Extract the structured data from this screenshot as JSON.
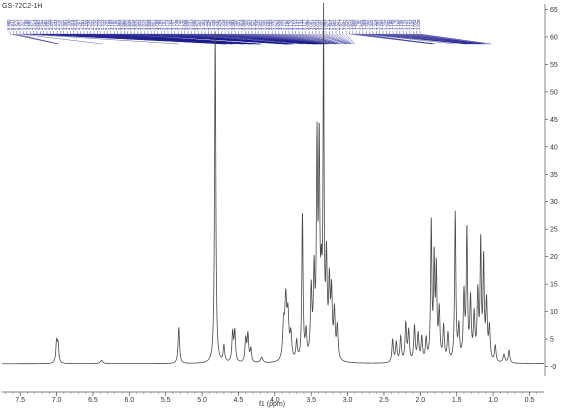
{
  "chart_data": {
    "type": "line",
    "sample_label": "GS-72C2-1H",
    "xlabel": "f1 (ppm)",
    "ylabel": "",
    "x_reversed": true,
    "xlim": [
      7.75,
      0.3
    ],
    "ylim": [
      -1,
      66
    ],
    "x_ticks": [
      "7.5",
      "7.0",
      "6.5",
      "6.0",
      "5.5",
      "5.0",
      "4.5",
      "4.0",
      "3.5",
      "3.0",
      "2.5",
      "2.0",
      "1.5",
      "1.0",
      "0.5"
    ],
    "y_ticks": [
      "-0",
      "5",
      "10",
      "15",
      "20",
      "25",
      "30",
      "35",
      "40",
      "45",
      "50",
      "55",
      "60",
      "65"
    ],
    "line_color": "#4a4a4a",
    "peak_label_color": "#1a1a8c",
    "baseline": 0.5,
    "peaks": [
      {
        "x": 7.0,
        "h": 3.8,
        "w": 0.012
      },
      {
        "x": 6.98,
        "h": 3.2,
        "w": 0.012
      },
      {
        "x": 6.38,
        "h": 0.6,
        "w": 0.02
      },
      {
        "x": 5.32,
        "h": 6.6,
        "w": 0.012
      },
      {
        "x": 4.82,
        "h": 60.5,
        "w": 0.01
      },
      {
        "x": 4.7,
        "h": 3.0,
        "w": 0.012
      },
      {
        "x": 4.58,
        "h": 5.3,
        "w": 0.012
      },
      {
        "x": 4.55,
        "h": 5.6,
        "w": 0.012
      },
      {
        "x": 4.4,
        "h": 4.2,
        "w": 0.012
      },
      {
        "x": 4.37,
        "h": 5.0,
        "w": 0.012
      },
      {
        "x": 4.33,
        "h": 2.4,
        "w": 0.012
      },
      {
        "x": 4.18,
        "h": 1.0,
        "w": 0.02
      },
      {
        "x": 3.88,
        "h": 6.2,
        "w": 0.015
      },
      {
        "x": 3.85,
        "h": 10.5,
        "w": 0.015
      },
      {
        "x": 3.82,
        "h": 7.8,
        "w": 0.015
      },
      {
        "x": 3.78,
        "h": 4.6,
        "w": 0.015
      },
      {
        "x": 3.7,
        "h": 3.5,
        "w": 0.012
      },
      {
        "x": 3.62,
        "h": 27.0,
        "w": 0.01
      },
      {
        "x": 3.57,
        "h": 4.8,
        "w": 0.012
      },
      {
        "x": 3.5,
        "h": 12.5,
        "w": 0.012
      },
      {
        "x": 3.46,
        "h": 15.0,
        "w": 0.012
      },
      {
        "x": 3.42,
        "h": 37.5,
        "w": 0.01
      },
      {
        "x": 3.39,
        "h": 37.0,
        "w": 0.01
      },
      {
        "x": 3.36,
        "h": 12.0,
        "w": 0.012
      },
      {
        "x": 3.33,
        "h": 60.5,
        "w": 0.008
      },
      {
        "x": 3.29,
        "h": 17.5,
        "w": 0.012
      },
      {
        "x": 3.25,
        "h": 13.0,
        "w": 0.012
      },
      {
        "x": 3.22,
        "h": 11.5,
        "w": 0.012
      },
      {
        "x": 3.18,
        "h": 8.5,
        "w": 0.012
      },
      {
        "x": 3.14,
        "h": 6.0,
        "w": 0.012
      },
      {
        "x": 2.38,
        "h": 4.2,
        "w": 0.012
      },
      {
        "x": 2.33,
        "h": 3.6,
        "w": 0.012
      },
      {
        "x": 2.27,
        "h": 4.6,
        "w": 0.012
      },
      {
        "x": 2.2,
        "h": 7.0,
        "w": 0.012
      },
      {
        "x": 2.16,
        "h": 5.6,
        "w": 0.012
      },
      {
        "x": 2.08,
        "h": 6.4,
        "w": 0.012
      },
      {
        "x": 2.03,
        "h": 5.0,
        "w": 0.012
      },
      {
        "x": 1.98,
        "h": 4.4,
        "w": 0.012
      },
      {
        "x": 1.92,
        "h": 4.0,
        "w": 0.012
      },
      {
        "x": 1.85,
        "h": 25.0,
        "w": 0.01
      },
      {
        "x": 1.81,
        "h": 18.0,
        "w": 0.01
      },
      {
        "x": 1.78,
        "h": 16.0,
        "w": 0.01
      },
      {
        "x": 1.74,
        "h": 9.0,
        "w": 0.012
      },
      {
        "x": 1.68,
        "h": 6.2,
        "w": 0.012
      },
      {
        "x": 1.62,
        "h": 5.0,
        "w": 0.012
      },
      {
        "x": 1.52,
        "h": 27.0,
        "w": 0.01
      },
      {
        "x": 1.47,
        "h": 6.0,
        "w": 0.012
      },
      {
        "x": 1.4,
        "h": 12.0,
        "w": 0.012
      },
      {
        "x": 1.36,
        "h": 23.5,
        "w": 0.01
      },
      {
        "x": 1.31,
        "h": 11.0,
        "w": 0.012
      },
      {
        "x": 1.26,
        "h": 8.0,
        "w": 0.012
      },
      {
        "x": 1.21,
        "h": 12.0,
        "w": 0.012
      },
      {
        "x": 1.17,
        "h": 21.0,
        "w": 0.01
      },
      {
        "x": 1.13,
        "h": 18.0,
        "w": 0.01
      },
      {
        "x": 1.09,
        "h": 10.5,
        "w": 0.012
      },
      {
        "x": 1.05,
        "h": 6.0,
        "w": 0.012
      },
      {
        "x": 0.97,
        "h": 3.0,
        "w": 0.012
      },
      {
        "x": 0.85,
        "h": 1.5,
        "w": 0.015
      },
      {
        "x": 0.78,
        "h": 2.3,
        "w": 0.012
      }
    ],
    "peak_labels": [
      {
        "text": "6.980",
        "x": 6.98
      },
      {
        "text": "6.977",
        "x": 6.977
      },
      {
        "text": "6.970",
        "x": 6.97
      },
      {
        "text": "6.367",
        "x": 6.367
      },
      {
        "text": "5.317",
        "x": 5.317
      },
      {
        "text": "4.700",
        "x": 4.7
      },
      {
        "text": "4.680",
        "x": 4.68
      },
      {
        "text": "4.671",
        "x": 4.671
      },
      {
        "text": "4.663",
        "x": 4.663
      },
      {
        "text": "4.662",
        "x": 4.662
      },
      {
        "text": "4.594",
        "x": 4.594
      },
      {
        "text": "4.580",
        "x": 4.58
      },
      {
        "text": "4.559",
        "x": 4.559
      },
      {
        "text": "4.437",
        "x": 4.437
      },
      {
        "text": "4.433",
        "x": 4.433
      },
      {
        "text": "4.416",
        "x": 4.416
      },
      {
        "text": "4.411",
        "x": 4.411
      },
      {
        "text": "4.361",
        "x": 4.361
      },
      {
        "text": "4.338",
        "x": 4.338
      },
      {
        "text": "4.319",
        "x": 4.319
      },
      {
        "text": "4.315",
        "x": 4.315
      },
      {
        "text": "4.297",
        "x": 4.297
      },
      {
        "text": "4.281",
        "x": 4.281
      },
      {
        "text": "4.256",
        "x": 4.256
      },
      {
        "text": "4.235",
        "x": 4.235
      },
      {
        "text": "4.231",
        "x": 4.231
      },
      {
        "text": "4.225",
        "x": 4.225
      },
      {
        "text": "4.219",
        "x": 4.219
      },
      {
        "text": "4.212",
        "x": 4.212
      },
      {
        "text": "4.205",
        "x": 4.205
      },
      {
        "text": "4.199",
        "x": 4.199
      },
      {
        "text": "4.192",
        "x": 4.192
      },
      {
        "text": "4.186",
        "x": 4.186
      },
      {
        "text": "3.865",
        "x": 3.865
      },
      {
        "text": "3.860",
        "x": 3.86
      },
      {
        "text": "3.855",
        "x": 3.855
      },
      {
        "text": "3.839",
        "x": 3.839
      },
      {
        "text": "3.834",
        "x": 3.834
      },
      {
        "text": "3.829",
        "x": 3.829
      },
      {
        "text": "3.824",
        "x": 3.824
      },
      {
        "text": "3.819",
        "x": 3.819
      },
      {
        "text": "3.814",
        "x": 3.814
      },
      {
        "text": "3.808",
        "x": 3.808
      },
      {
        "text": "3.801",
        "x": 3.801
      },
      {
        "text": "3.795",
        "x": 3.795
      },
      {
        "text": "3.790",
        "x": 3.79
      },
      {
        "text": "3.782",
        "x": 3.782
      },
      {
        "text": "3.774",
        "x": 3.774
      },
      {
        "text": "3.765",
        "x": 3.765
      },
      {
        "text": "3.757",
        "x": 3.757
      },
      {
        "text": "3.748",
        "x": 3.748
      },
      {
        "text": "3.740",
        "x": 3.74
      },
      {
        "text": "3.620",
        "x": 3.62
      },
      {
        "text": "3.598",
        "x": 3.598
      },
      {
        "text": "3.531",
        "x": 3.531
      },
      {
        "text": "3.500",
        "x": 3.5
      },
      {
        "text": "3.472",
        "x": 3.472
      },
      {
        "text": "3.460",
        "x": 3.46
      },
      {
        "text": "3.454",
        "x": 3.454
      },
      {
        "text": "3.448",
        "x": 3.448
      },
      {
        "text": "3.442",
        "x": 3.442
      },
      {
        "text": "3.436",
        "x": 3.436
      },
      {
        "text": "3.430",
        "x": 3.43
      },
      {
        "text": "3.424",
        "x": 3.424
      },
      {
        "text": "3.418",
        "x": 3.418
      },
      {
        "text": "3.409",
        "x": 3.409
      },
      {
        "text": "3.400",
        "x": 3.4
      },
      {
        "text": "3.393",
        "x": 3.393
      },
      {
        "text": "3.385",
        "x": 3.385
      },
      {
        "text": "3.374",
        "x": 3.374
      },
      {
        "text": "3.368",
        "x": 3.368
      },
      {
        "text": "3.360",
        "x": 3.36
      },
      {
        "text": "3.352",
        "x": 3.352
      },
      {
        "text": "3.341",
        "x": 3.341
      },
      {
        "text": "3.330",
        "x": 3.33
      },
      {
        "text": "3.322",
        "x": 3.322
      },
      {
        "text": "3.306",
        "x": 3.306
      },
      {
        "text": "3.292",
        "x": 3.292
      },
      {
        "text": "3.283",
        "x": 3.283
      },
      {
        "text": "3.270",
        "x": 3.27
      },
      {
        "text": "3.254",
        "x": 3.254
      },
      {
        "text": "3.240",
        "x": 3.24
      },
      {
        "text": "3.223",
        "x": 3.223
      },
      {
        "text": "3.186",
        "x": 3.186
      },
      {
        "text": "3.170",
        "x": 3.17
      },
      {
        "text": "3.163",
        "x": 3.163
      },
      {
        "text": "3.137",
        "x": 3.137
      },
      {
        "text": "3.133",
        "x": 3.133
      },
      {
        "text": "3.127",
        "x": 3.127
      },
      {
        "text": "3.095",
        "x": 3.095
      },
      {
        "text": "3.081",
        "x": 3.081
      },
      {
        "text": "3.031",
        "x": 3.031
      },
      {
        "text": "3.014",
        "x": 3.014
      },
      {
        "text": "3.005",
        "x": 3.005
      },
      {
        "text": "2.993",
        "x": 2.993
      },
      {
        "text": "2.971",
        "x": 2.971
      },
      {
        "text": "2.960",
        "x": 2.96
      },
      {
        "text": "2.952",
        "x": 2.952
      },
      {
        "text": "2.941",
        "x": 2.941
      },
      {
        "text": "2.917",
        "x": 2.917
      },
      {
        "text": "2.902",
        "x": 2.902
      },
      {
        "text": "1.843",
        "x": 1.843
      },
      {
        "text": "1.824",
        "x": 1.824
      },
      {
        "text": "1.800",
        "x": 1.8
      },
      {
        "text": "1.790",
        "x": 1.79
      },
      {
        "text": "1.525",
        "x": 1.525
      },
      {
        "text": "1.369",
        "x": 1.369
      },
      {
        "text": "1.360",
        "x": 1.36
      },
      {
        "text": "1.340",
        "x": 1.34
      },
      {
        "text": "1.314",
        "x": 1.314
      },
      {
        "text": "1.300",
        "x": 1.3
      },
      {
        "text": "1.265",
        "x": 1.265
      },
      {
        "text": "1.234",
        "x": 1.234
      },
      {
        "text": "1.200",
        "x": 1.2
      },
      {
        "text": "1.196",
        "x": 1.196
      },
      {
        "text": "1.178",
        "x": 1.178
      },
      {
        "text": "1.160",
        "x": 1.16
      },
      {
        "text": "1.136",
        "x": 1.136
      },
      {
        "text": "1.129",
        "x": 1.129
      },
      {
        "text": "1.121",
        "x": 1.121
      },
      {
        "text": "1.106",
        "x": 1.106
      },
      {
        "text": "1.034",
        "x": 1.034
      },
      {
        "text": "1.028",
        "x": 1.028
      }
    ]
  }
}
